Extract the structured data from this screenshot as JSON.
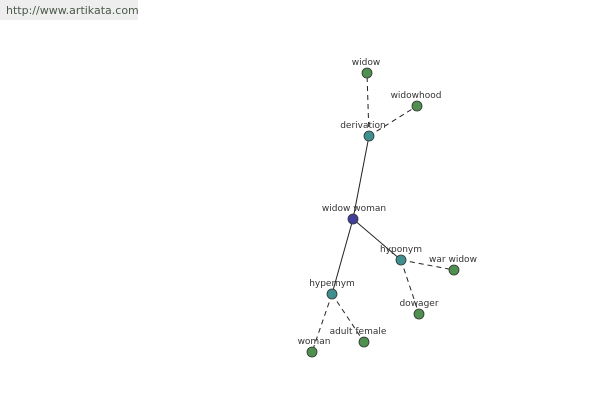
{
  "header": {
    "url": "http://www.artikata.com"
  },
  "nodes": [
    {
      "label": "widow woman"
    },
    {
      "label": "derivation"
    },
    {
      "label": "widow"
    },
    {
      "label": "widowhood"
    },
    {
      "label": "hyponym"
    },
    {
      "label": "war widow"
    },
    {
      "label": "dowager"
    },
    {
      "label": "hypernym"
    },
    {
      "label": "woman"
    },
    {
      "label": "adult female"
    }
  ]
}
